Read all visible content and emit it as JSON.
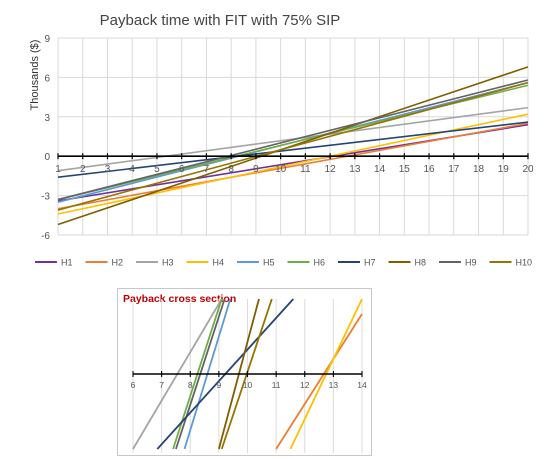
{
  "chart_data": [
    {
      "type": "line",
      "title": "Payback time with FIT with 75% SIP",
      "xlabel": "",
      "ylabel": "Thousands ($)",
      "xlim": [
        1,
        20
      ],
      "ylim": [
        -6,
        9
      ],
      "x_ticks": [
        1,
        2,
        3,
        4,
        5,
        6,
        7,
        8,
        9,
        10,
        11,
        12,
        13,
        14,
        15,
        16,
        17,
        18,
        19,
        20
      ],
      "y_ticks": [
        -6,
        -3,
        0,
        3,
        6,
        9
      ],
      "grid": true,
      "legend": "bottom",
      "series": [
        {
          "name": "H1",
          "color": "#7030a0",
          "x": [
            1,
            20
          ],
          "y": [
            -3.4,
            2.4
          ]
        },
        {
          "name": "H2",
          "color": "#ed7d31",
          "x": [
            1,
            20
          ],
          "y": [
            -4.0,
            2.5
          ]
        },
        {
          "name": "H3",
          "color": "#a5a5a5",
          "x": [
            1,
            20
          ],
          "y": [
            -1.1,
            3.7
          ]
        },
        {
          "name": "H4",
          "color": "#ffc000",
          "x": [
            1,
            20
          ],
          "y": [
            -4.4,
            3.2
          ]
        },
        {
          "name": "H5",
          "color": "#5b9bd5",
          "x": [
            1,
            20
          ],
          "y": [
            -3.5,
            5.6
          ]
        },
        {
          "name": "H6",
          "color": "#70ad47",
          "x": [
            1,
            20
          ],
          "y": [
            -3.3,
            5.4
          ]
        },
        {
          "name": "H7",
          "color": "#264478",
          "x": [
            1,
            20
          ],
          "y": [
            -1.6,
            2.6
          ]
        },
        {
          "name": "H8",
          "color": "#7f5f00",
          "x": [
            1,
            20
          ],
          "y": [
            -5.2,
            6.8
          ]
        },
        {
          "name": "H9",
          "color": "#636363",
          "x": [
            1,
            20
          ],
          "y": [
            -3.3,
            5.8
          ]
        },
        {
          "name": "H10",
          "color": "#997300",
          "x": [
            1,
            20
          ],
          "y": [
            -4.1,
            5.6
          ]
        }
      ]
    },
    {
      "type": "line",
      "title": "Payback cross section",
      "xlim": [
        6,
        14
      ],
      "x_ticks": [
        6,
        7,
        8,
        9,
        10,
        11,
        12,
        13,
        14
      ],
      "grid": true,
      "series": [
        {
          "name": "H3",
          "color": "#a5a5a5",
          "x": [
            6.0,
            9.1
          ],
          "y": [
            -1.0,
            1.0
          ]
        },
        {
          "name": "H6",
          "color": "#70ad47",
          "x": [
            7.4,
            9.1
          ],
          "y": [
            -1.0,
            1.0
          ]
        },
        {
          "name": "H9",
          "color": "#636363",
          "x": [
            7.5,
            9.2
          ],
          "y": [
            -1.0,
            1.0
          ]
        },
        {
          "name": "H5",
          "color": "#5b9bd5",
          "x": [
            7.8,
            9.4
          ],
          "y": [
            -1.0,
            1.0
          ]
        },
        {
          "name": "H7",
          "color": "#264478",
          "x": [
            6.85,
            11.6
          ],
          "y": [
            -1.0,
            1.0
          ]
        },
        {
          "name": "H8",
          "color": "#7f5f00",
          "x": [
            9.0,
            10.4
          ],
          "y": [
            -1.0,
            1.0
          ]
        },
        {
          "name": "H10",
          "color": "#997300",
          "x": [
            9.1,
            10.85
          ],
          "y": [
            -1.0,
            1.0
          ]
        },
        {
          "name": "H2",
          "color": "#ed7d31",
          "x": [
            11.0,
            14.0
          ],
          "y": [
            -1.0,
            0.8
          ]
        },
        {
          "name": "H4",
          "color": "#ffc000",
          "x": [
            11.5,
            14.0
          ],
          "y": [
            -1.0,
            1.0
          ]
        }
      ]
    }
  ]
}
